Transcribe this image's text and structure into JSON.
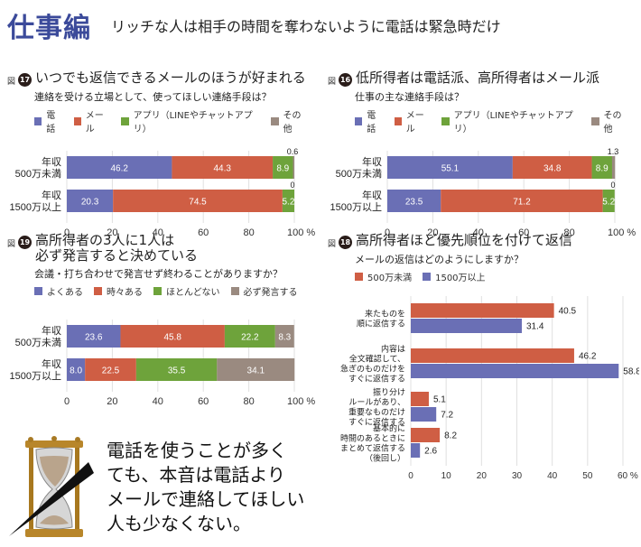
{
  "header": {
    "title": "仕事編",
    "subtitle": "リッチな人は相手の時間を奪わないように電話は緊急時だけ"
  },
  "colors": {
    "blue": "#6a6fb5",
    "red": "#cf5e44",
    "green": "#6ea33b",
    "gray": "#9a8a80",
    "title_blue": "#3b4a9a"
  },
  "quote": "電話を使うことが多く\nても、本音は電話より\nメールで連絡してほしい\n人も少なくない。",
  "chart_data": [
    {
      "id": "fig17",
      "type": "bar",
      "stacked": true,
      "orientation": "horizontal",
      "fig_label": "図",
      "fig_number": "17",
      "title": "いつでも返信できるメールのほうが好まれる",
      "question": "連絡を受ける立場として、使ってほしい連絡手段は？",
      "categories": [
        "年収\n500万未満",
        "年収\n1500万以上"
      ],
      "series": [
        {
          "name": "電話",
          "color": "#6a6fb5",
          "values": [
            46.2,
            20.3
          ]
        },
        {
          "name": "メール",
          "color": "#cf5e44",
          "values": [
            44.3,
            74.5
          ]
        },
        {
          "name": "アプリ（LINEやチャットアプリ）",
          "color": "#6ea33b",
          "values": [
            8.9,
            5.2
          ]
        },
        {
          "name": "その他",
          "color": "#9a8a80",
          "values": [
            0.6,
            0
          ]
        }
      ],
      "outside_labels": [
        "0.6",
        "0"
      ],
      "xlim": [
        0,
        100
      ],
      "xticks": [
        "0",
        "20",
        "40",
        "60",
        "80",
        "100 %"
      ],
      "grid": true
    },
    {
      "id": "fig16",
      "type": "bar",
      "stacked": true,
      "orientation": "horizontal",
      "fig_label": "図",
      "fig_number": "16",
      "title": "低所得者は電話派、高所得者はメール派",
      "question": "仕事の主な連絡手段は？",
      "categories": [
        "年収\n500万未満",
        "年収\n1500万以上"
      ],
      "series": [
        {
          "name": "電話",
          "color": "#6a6fb5",
          "values": [
            55.1,
            23.5
          ]
        },
        {
          "name": "メール",
          "color": "#cf5e44",
          "values": [
            34.8,
            71.2
          ]
        },
        {
          "name": "アプリ（LINEやチャットアプリ）",
          "color": "#6ea33b",
          "values": [
            8.9,
            5.2
          ]
        },
        {
          "name": "その他",
          "color": "#9a8a80",
          "values": [
            1.3,
            0
          ]
        }
      ],
      "outside_labels": [
        "1.3",
        "0"
      ],
      "xlim": [
        0,
        100
      ],
      "xticks": [
        "0",
        "20",
        "40",
        "60",
        "80",
        "100 %"
      ],
      "grid": true
    },
    {
      "id": "fig19",
      "type": "bar",
      "stacked": true,
      "orientation": "horizontal",
      "fig_label": "図",
      "fig_number": "19",
      "title": "高所得者の3人に1人は\n必ず発言すると決めている",
      "question": "会議・打ち合わせで発言せず終わることがありますか？",
      "categories": [
        "年収\n500万未満",
        "年収\n1500万以上"
      ],
      "series": [
        {
          "name": "よくある",
          "color": "#6a6fb5",
          "values": [
            23.6,
            8.0
          ]
        },
        {
          "name": "時々ある",
          "color": "#cf5e44",
          "values": [
            45.8,
            22.5
          ]
        },
        {
          "name": "ほとんどない",
          "color": "#6ea33b",
          "values": [
            22.2,
            35.5
          ]
        },
        {
          "name": "必ず発言する",
          "color": "#9a8a80",
          "values": [
            8.3,
            34.1
          ]
        }
      ],
      "outside_labels": [
        "",
        ""
      ],
      "xlim": [
        0,
        100
      ],
      "xticks": [
        "0",
        "20",
        "40",
        "60",
        "80",
        "100 %"
      ],
      "grid": true
    },
    {
      "id": "fig18",
      "type": "bar",
      "stacked": false,
      "orientation": "horizontal",
      "fig_label": "図",
      "fig_number": "18",
      "title": "高所得者ほど優先順位を付けて返信",
      "question": "メールの返信はどのようにしますか？",
      "categories": [
        "来たものを\n順に返信する",
        "内容は\n全文確認して、\n急ぎのものだけを\nすぐに返信する",
        "振り分け\nルールがあり、\n重要なものだけ\nすぐに返信する",
        "基本的に\n時間のあるときに\nまとめて返信する\n（後回し）"
      ],
      "series": [
        {
          "name": "500万未満",
          "color": "#cf5e44",
          "values": [
            40.5,
            46.2,
            5.1,
            8.2
          ]
        },
        {
          "name": "1500万以上",
          "color": "#6a6fb5",
          "values": [
            31.4,
            58.8,
            7.2,
            2.6
          ]
        }
      ],
      "xlim": [
        0,
        60
      ],
      "xticks": [
        "0",
        "10",
        "20",
        "30",
        "40",
        "50",
        "60 %"
      ],
      "grid": true
    }
  ]
}
